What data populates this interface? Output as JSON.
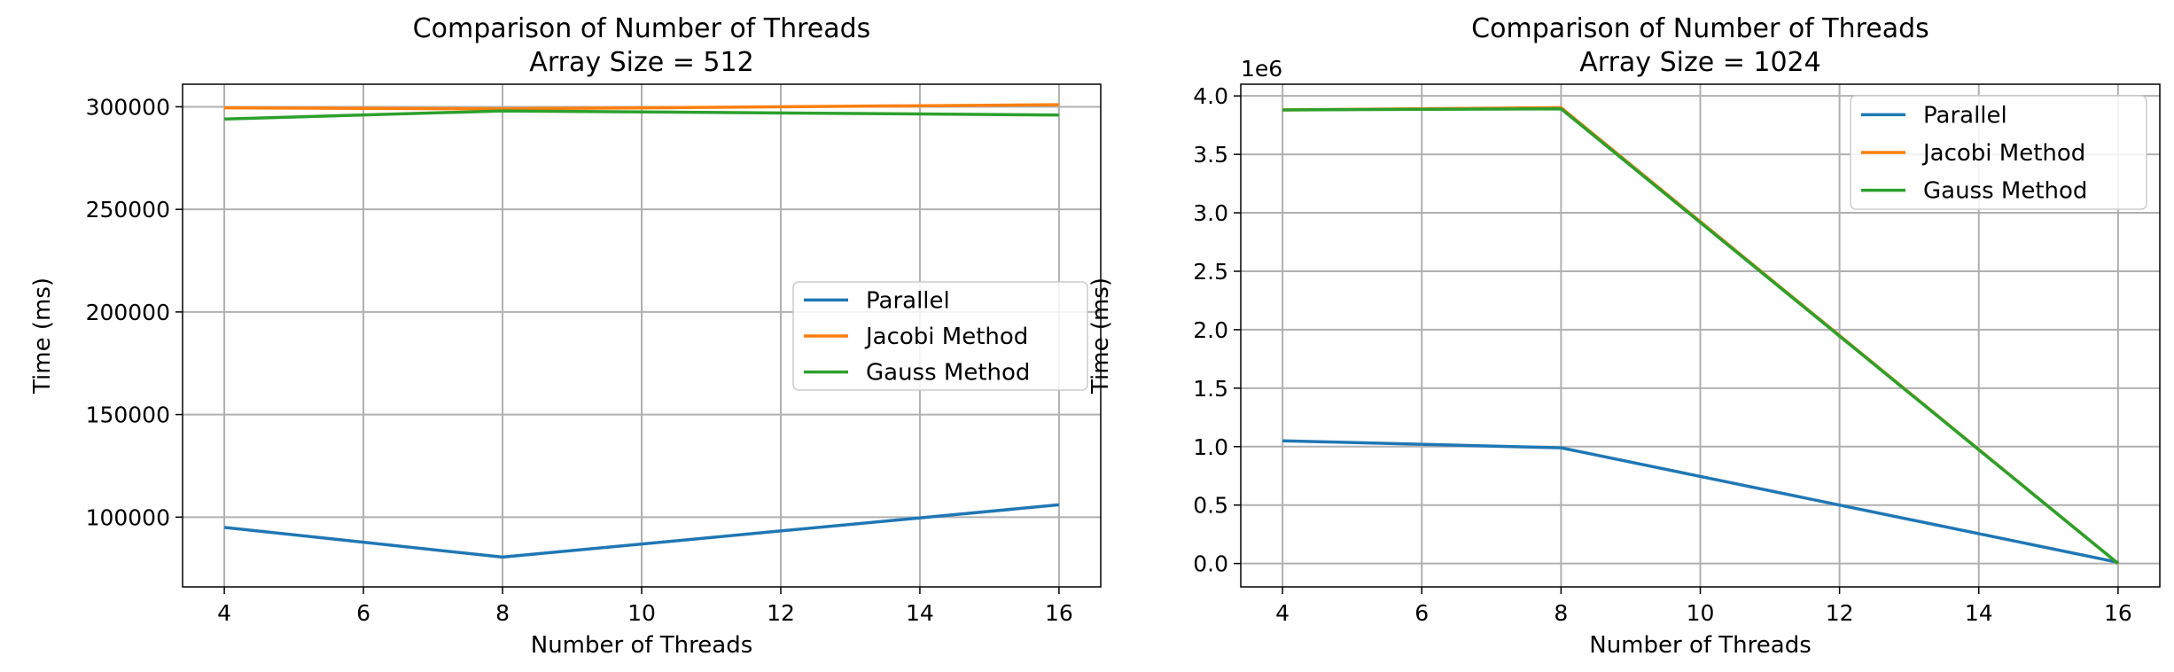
{
  "chart_data": [
    {
      "type": "line",
      "title": "Comparison of Number of Threads\nArray Size = 512",
      "xlabel": "Number of Threads",
      "ylabel": "Time (ms)",
      "x": [
        4,
        8,
        16
      ],
      "xlim": [
        3.4,
        16.6
      ],
      "ylim": [
        66000,
        311000
      ],
      "xticks": [
        4,
        6,
        8,
        10,
        12,
        14,
        16
      ],
      "yticks": [
        100000,
        150000,
        200000,
        250000,
        300000
      ],
      "ytick_labels": [
        "100000",
        "150000",
        "200000",
        "250000",
        "300000"
      ],
      "offset_label": "",
      "grid": true,
      "legend_position": "center-right",
      "series": [
        {
          "name": "Parallel",
          "color": "#1f77b4",
          "values": [
            95000,
            80500,
            106000
          ]
        },
        {
          "name": "Jacobi Method",
          "color": "#ff7f0e",
          "values": [
            299500,
            299000,
            301000
          ]
        },
        {
          "name": "Gauss Method",
          "color": "#2ca02c",
          "values": [
            294000,
            298000,
            296000
          ]
        }
      ]
    },
    {
      "type": "line",
      "title": "Comparison of Number of Threads\nArray Size = 1024",
      "xlabel": "Number of Threads",
      "ylabel": "Time (ms)",
      "x": [
        4,
        8,
        16
      ],
      "xlim": [
        3.4,
        16.6
      ],
      "ylim": [
        -0.2,
        4.1
      ],
      "xticks": [
        4,
        6,
        8,
        10,
        12,
        14,
        16
      ],
      "yticks": [
        0,
        0.5,
        1.0,
        1.5,
        2.0,
        2.5,
        3.0,
        3.5,
        4.0
      ],
      "ytick_labels": [
        "0.0",
        "0.5",
        "1.0",
        "1.5",
        "2.0",
        "2.5",
        "3.0",
        "3.5",
        "4.0"
      ],
      "offset_label": "1e6",
      "grid": true,
      "legend_position": "upper-right",
      "series": [
        {
          "name": "Parallel",
          "color": "#1f77b4",
          "values": [
            1.05,
            0.99,
            0.01
          ]
        },
        {
          "name": "Jacobi Method",
          "color": "#ff7f0e",
          "values": [
            3.88,
            3.9,
            0.0
          ]
        },
        {
          "name": "Gauss Method",
          "color": "#2ca02c",
          "values": [
            3.88,
            3.89,
            0.0
          ]
        }
      ]
    }
  ]
}
